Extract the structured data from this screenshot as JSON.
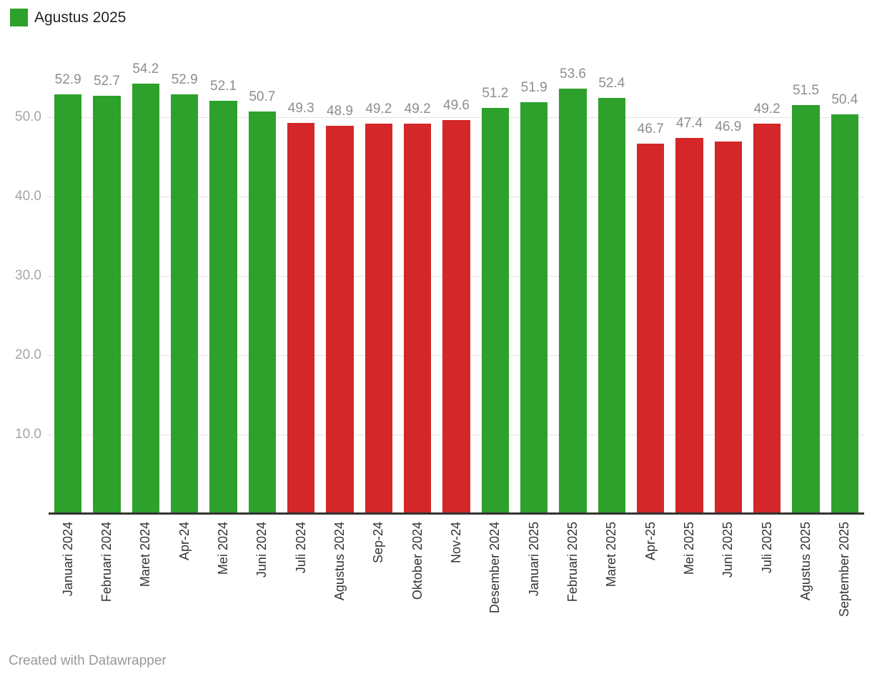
{
  "legend": {
    "label": "Agustus 2025",
    "color": "#2da12c"
  },
  "footer": {
    "text": "Created with Datawrapper"
  },
  "colors": {
    "positive": "#2da12c",
    "negative": "#d32729",
    "axis": "#333333",
    "grid": "#e4e4e4",
    "value_label": "#8e8e8e",
    "ytick_label": "#a6a6a6",
    "xtick_label": "#333333",
    "footer_text": "#999999"
  },
  "chart_data": {
    "type": "bar",
    "title": "",
    "legend_label": "Agustus 2025",
    "legend_position": "top-left",
    "grid": true,
    "threshold": 50,
    "ylim": [
      0,
      55
    ],
    "ytick_values": [
      10,
      20,
      30,
      40,
      50
    ],
    "ytick_labels": [
      "10.0",
      "20.0",
      "30.0",
      "40.0",
      "50.0"
    ],
    "categories": [
      "Januari 2024",
      "Februari 2024",
      "Maret 2024",
      "Apr-24",
      "Mei 2024",
      "Juni 2024",
      "Juli 2024",
      "Agustus 2024",
      "Sep-24",
      "Oktober 2024",
      "Nov-24",
      "Desember 2024",
      "Januari 2025",
      "Februari 2025",
      "Maret 2025",
      "Apr-25",
      "Mei 2025",
      "Juni 2025",
      "Juli 2025",
      "Agustus 2025",
      "September 2025"
    ],
    "values": [
      52.9,
      52.7,
      54.2,
      52.9,
      52.1,
      50.7,
      49.3,
      48.9,
      49.2,
      49.2,
      49.6,
      51.2,
      51.9,
      53.6,
      52.4,
      46.7,
      47.4,
      46.9,
      49.2,
      51.5,
      50.4
    ],
    "value_labels": [
      "52.9",
      "52.7",
      "54.2",
      "52.9",
      "52.1",
      "50.7",
      "49.3",
      "48.9",
      "49.2",
      "49.2",
      "49.6",
      "51.2",
      "51.9",
      "53.6",
      "52.4",
      "46.7",
      "47.4",
      "46.9",
      "49.2",
      "51.5",
      "50.4"
    ],
    "bar_colors": [
      "#2da12c",
      "#2da12c",
      "#2da12c",
      "#2da12c",
      "#2da12c",
      "#2da12c",
      "#d32729",
      "#d32729",
      "#d32729",
      "#d32729",
      "#d32729",
      "#2da12c",
      "#2da12c",
      "#2da12c",
      "#2da12c",
      "#d32729",
      "#d32729",
      "#d32729",
      "#d32729",
      "#2da12c",
      "#2da12c"
    ]
  }
}
